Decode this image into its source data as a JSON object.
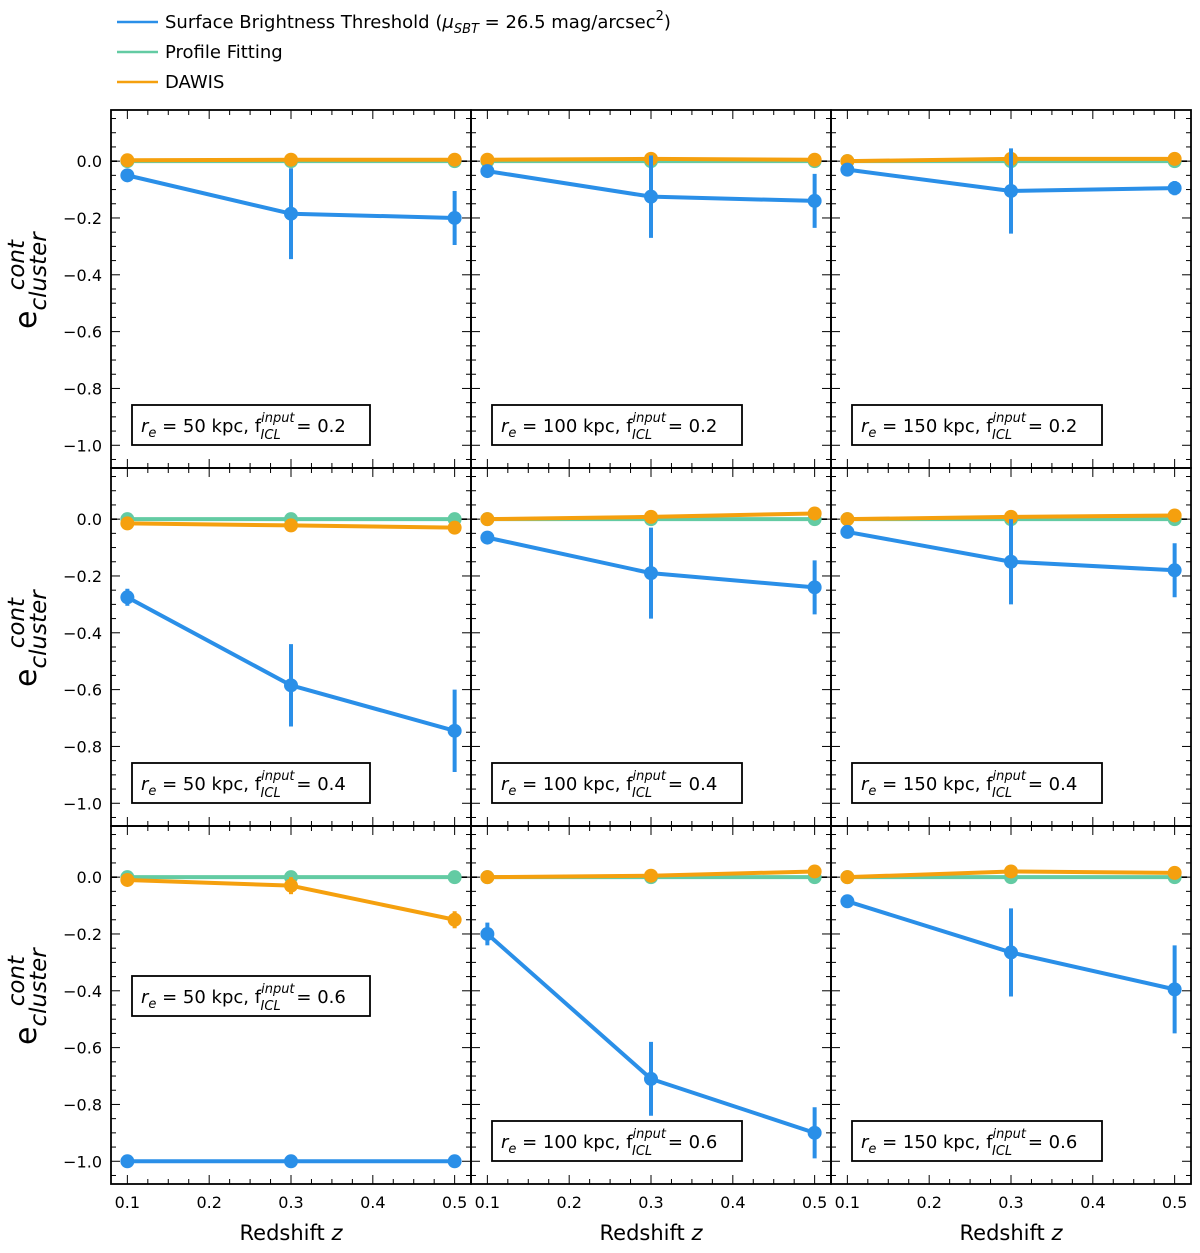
{
  "chart_data": {
    "type": "line",
    "layout": "3x3 grid of panels",
    "legend": {
      "placement": "top-left, above panels",
      "entries": [
        {
          "name": "Surface Brightness Threshold",
          "suffix": "(μ_SBT = 26.5 mag/arcsec²)",
          "color": "#2a8fe8"
        },
        {
          "name": "Profile Fitting",
          "color": "#63cba3"
        },
        {
          "name": "DAWIS",
          "color": "#f5a00e"
        }
      ]
    },
    "xlabel": "Redshift z",
    "ylabel": "e_cluster^cont",
    "xlim": [
      0.08,
      0.52
    ],
    "ylim": [
      -1.08,
      0.18
    ],
    "xticks": [
      0.1,
      0.2,
      0.3,
      0.4,
      0.5
    ],
    "xtick_labels": [
      "0.1",
      "0.2",
      "0.3",
      "0.4",
      "0.5"
    ],
    "yticks": [
      0.0,
      -0.2,
      -0.4,
      -0.6,
      -0.8,
      -1.0
    ],
    "ytick_labels": [
      "0.0",
      "−0.2",
      "−0.4",
      "−0.6",
      "−0.8",
      "−1.0"
    ],
    "reference_line": {
      "y": 0.0,
      "style": "dashed",
      "color": "#000000"
    },
    "panels": [
      {
        "row": 0,
        "col": 0,
        "label": {
          "re": "50 kpc",
          "f": "0.2"
        },
        "label_pos": "bottom",
        "x": [
          0.1,
          0.3,
          0.5
        ],
        "series": [
          {
            "name": "Profile Fitting",
            "y": [
              0.0,
              0.0,
              0.0
            ],
            "err": [
              0,
              0,
              0
            ]
          },
          {
            "name": "DAWIS",
            "y": [
              0.003,
              0.005,
              0.005
            ],
            "err": [
              0,
              0,
              0
            ]
          },
          {
            "name": "Surface Brightness Threshold",
            "y": [
              -0.05,
              -0.185,
              -0.2
            ],
            "err": [
              0,
              0.16,
              0.095
            ]
          }
        ]
      },
      {
        "row": 0,
        "col": 1,
        "label": {
          "re": "100 kpc",
          "f": "0.2"
        },
        "label_pos": "bottom",
        "x": [
          0.1,
          0.3,
          0.5
        ],
        "series": [
          {
            "name": "Profile Fitting",
            "y": [
              0.0,
              0.0,
              0.0
            ],
            "err": [
              0,
              0,
              0
            ]
          },
          {
            "name": "DAWIS",
            "y": [
              0.005,
              0.008,
              0.005
            ],
            "err": [
              0,
              0,
              0
            ]
          },
          {
            "name": "Surface Brightness Threshold",
            "y": [
              -0.035,
              -0.125,
              -0.14
            ],
            "err": [
              0,
              0.145,
              0.095
            ]
          }
        ]
      },
      {
        "row": 0,
        "col": 2,
        "label": {
          "re": "150 kpc",
          "f": "0.2"
        },
        "label_pos": "bottom",
        "x": [
          0.1,
          0.3,
          0.5
        ],
        "series": [
          {
            "name": "Profile Fitting",
            "y": [
              0.0,
              0.0,
              0.0
            ],
            "err": [
              0,
              0,
              0
            ]
          },
          {
            "name": "DAWIS",
            "y": [
              0.0,
              0.008,
              0.008
            ],
            "err": [
              0,
              0,
              0
            ]
          },
          {
            "name": "Surface Brightness Threshold",
            "y": [
              -0.03,
              -0.105,
              -0.095
            ],
            "err": [
              0,
              0.15,
              0.025
            ]
          }
        ]
      },
      {
        "row": 1,
        "col": 0,
        "label": {
          "re": "50 kpc",
          "f": "0.4"
        },
        "label_pos": "bottom",
        "x": [
          0.1,
          0.3,
          0.5
        ],
        "series": [
          {
            "name": "Profile Fitting",
            "y": [
              0.0,
              0.0,
              0.0
            ],
            "err": [
              0,
              0,
              0
            ]
          },
          {
            "name": "DAWIS",
            "y": [
              -0.015,
              -0.022,
              -0.03
            ],
            "err": [
              0,
              0,
              0
            ]
          },
          {
            "name": "Surface Brightness Threshold",
            "y": [
              -0.275,
              -0.585,
              -0.745
            ],
            "err": [
              0.03,
              0.145,
              0.145
            ]
          }
        ]
      },
      {
        "row": 1,
        "col": 1,
        "label": {
          "re": "100 kpc",
          "f": "0.4"
        },
        "label_pos": "bottom",
        "x": [
          0.1,
          0.3,
          0.5
        ],
        "series": [
          {
            "name": "Profile Fitting",
            "y": [
              0.0,
              0.0,
              0.0
            ],
            "err": [
              0,
              0,
              0
            ]
          },
          {
            "name": "DAWIS",
            "y": [
              0.0,
              0.008,
              0.02
            ],
            "err": [
              0,
              0,
              0
            ]
          },
          {
            "name": "Surface Brightness Threshold",
            "y": [
              -0.065,
              -0.19,
              -0.24
            ],
            "err": [
              0,
              0.16,
              0.095
            ]
          }
        ]
      },
      {
        "row": 1,
        "col": 2,
        "label": {
          "re": "150 kpc",
          "f": "0.4"
        },
        "label_pos": "bottom",
        "x": [
          0.1,
          0.3,
          0.5
        ],
        "series": [
          {
            "name": "Profile Fitting",
            "y": [
              0.0,
              0.0,
              0.0
            ],
            "err": [
              0,
              0,
              0
            ]
          },
          {
            "name": "DAWIS",
            "y": [
              0.0,
              0.008,
              0.013
            ],
            "err": [
              0,
              0,
              0
            ]
          },
          {
            "name": "Surface Brightness Threshold",
            "y": [
              -0.045,
              -0.15,
              -0.18
            ],
            "err": [
              0,
              0.15,
              0.095
            ]
          }
        ]
      },
      {
        "row": 2,
        "col": 0,
        "label": {
          "re": "50 kpc",
          "f": "0.6"
        },
        "label_pos": "middle",
        "x": [
          0.1,
          0.3,
          0.5
        ],
        "series": [
          {
            "name": "Profile Fitting",
            "y": [
              0.0,
              0.0,
              0.0
            ],
            "err": [
              0,
              0,
              0
            ]
          },
          {
            "name": "DAWIS",
            "y": [
              -0.01,
              -0.03,
              -0.15
            ],
            "err": [
              0,
              0.03,
              0.03
            ]
          },
          {
            "name": "Surface Brightness Threshold",
            "y": [
              -1.0,
              -1.0,
              -1.0
            ],
            "err": [
              0,
              0,
              0
            ]
          }
        ]
      },
      {
        "row": 2,
        "col": 1,
        "label": {
          "re": "100 kpc",
          "f": "0.6"
        },
        "label_pos": "bottom",
        "x": [
          0.1,
          0.3,
          0.5
        ],
        "series": [
          {
            "name": "Profile Fitting",
            "y": [
              0.0,
              0.0,
              0.0
            ],
            "err": [
              0,
              0,
              0
            ]
          },
          {
            "name": "DAWIS",
            "y": [
              0.0,
              0.005,
              0.02
            ],
            "err": [
              0,
              0,
              0
            ]
          },
          {
            "name": "Surface Brightness Threshold",
            "y": [
              -0.2,
              -0.71,
              -0.9
            ],
            "err": [
              0.04,
              0.13,
              0.09
            ]
          }
        ]
      },
      {
        "row": 2,
        "col": 2,
        "label": {
          "re": "150 kpc",
          "f": "0.6"
        },
        "label_pos": "bottom",
        "x": [
          0.1,
          0.3,
          0.5
        ],
        "series": [
          {
            "name": "Profile Fitting",
            "y": [
              0.0,
              0.0,
              0.0
            ],
            "err": [
              0,
              0,
              0
            ]
          },
          {
            "name": "DAWIS",
            "y": [
              0.0,
              0.02,
              0.015
            ],
            "err": [
              0,
              0,
              0
            ]
          },
          {
            "name": "Surface Brightness Threshold",
            "y": [
              -0.085,
              -0.265,
              -0.395
            ],
            "err": [
              0,
              0.155,
              0.155
            ]
          }
        ]
      }
    ]
  }
}
